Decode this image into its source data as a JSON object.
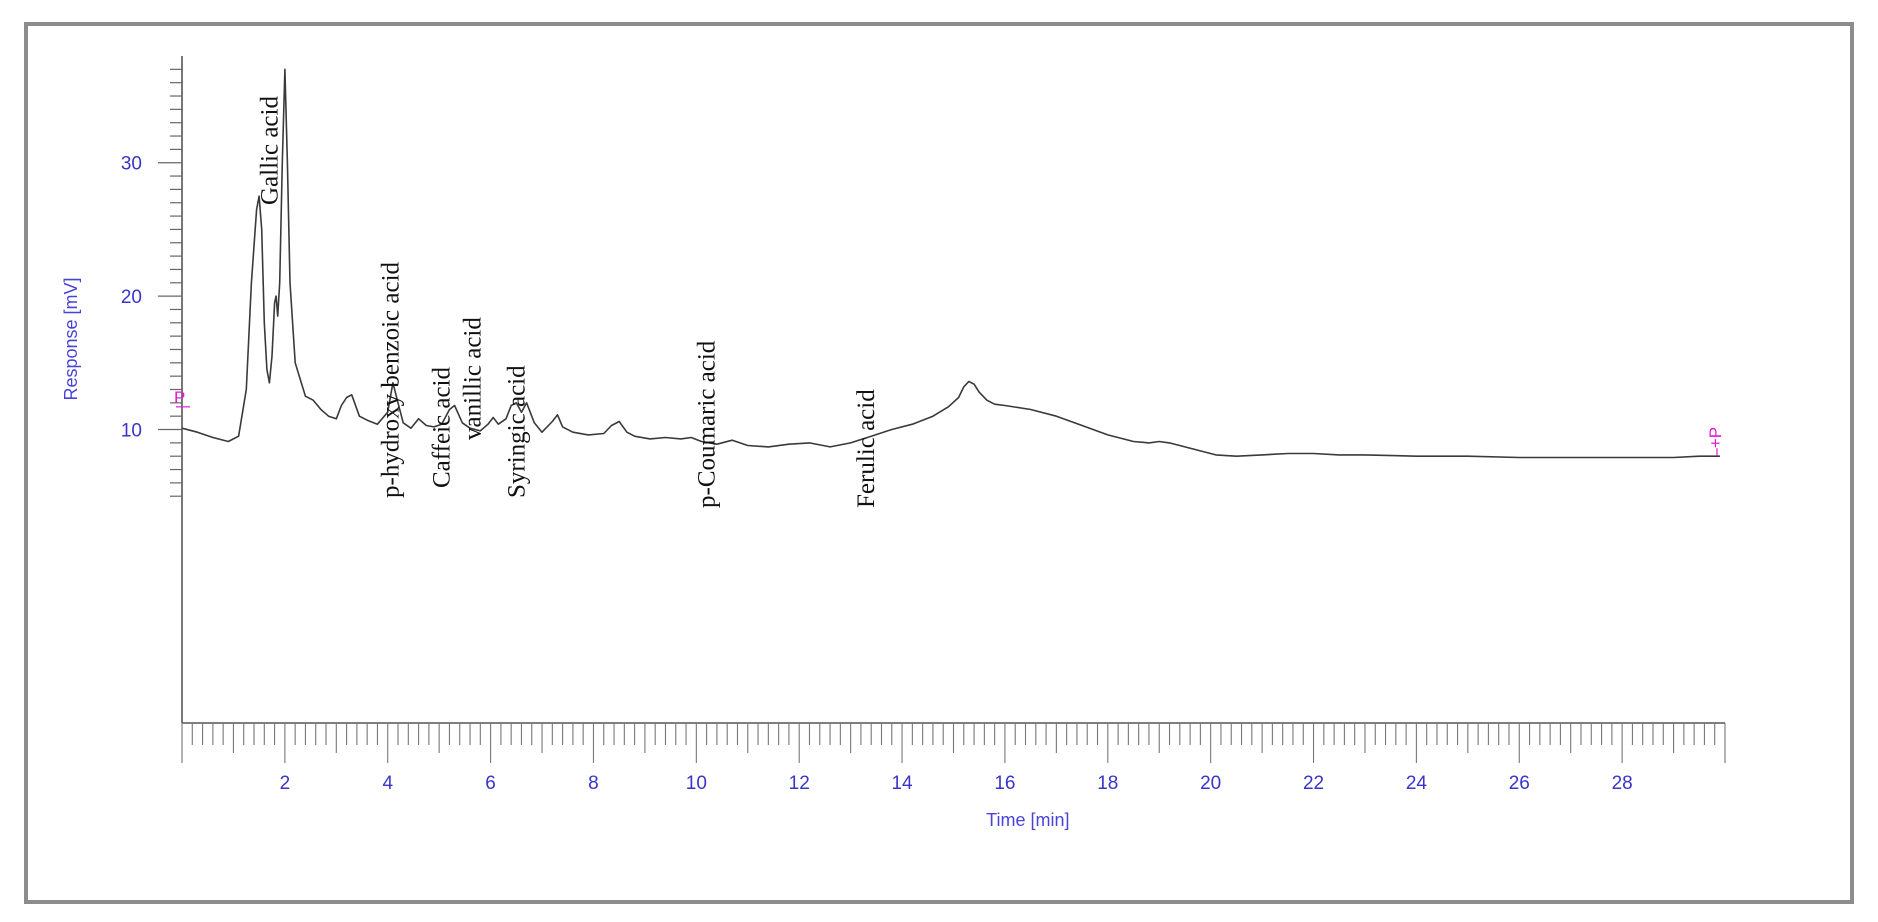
{
  "chart_data": {
    "type": "line",
    "title": "",
    "xlabel": "Time [min]",
    "ylabel": "Response [mV]",
    "xlim": [
      0,
      30
    ],
    "ylim": [
      -12,
      38
    ],
    "x_ticks": [
      2,
      4,
      6,
      8,
      10,
      12,
      14,
      16,
      18,
      20,
      22,
      24,
      26,
      28
    ],
    "y_ticks": [
      10,
      20,
      30
    ],
    "baseline_markers": [
      "P",
      "+P"
    ],
    "series": [
      {
        "x": [
          0.0,
          0.3,
          0.6,
          0.9,
          1.1,
          1.25,
          1.35,
          1.45,
          1.5,
          1.55,
          1.6,
          1.65,
          1.7,
          1.75,
          1.8,
          1.83,
          1.86,
          1.9,
          1.95,
          2.0,
          2.05,
          2.1,
          2.2,
          2.4,
          2.55,
          2.7,
          2.85,
          3.0,
          3.1,
          3.2,
          3.3,
          3.45,
          3.6,
          3.8,
          4.0,
          4.1,
          4.2,
          4.3,
          4.45,
          4.6,
          4.75,
          4.9,
          5.05,
          5.2,
          5.3,
          5.45,
          5.6,
          5.8,
          5.95,
          6.05,
          6.15,
          6.3,
          6.4,
          6.5,
          6.6,
          6.7,
          6.85,
          7.0,
          7.2,
          7.3,
          7.4,
          7.6,
          7.9,
          8.2,
          8.35,
          8.5,
          8.65,
          8.8,
          9.1,
          9.4,
          9.7,
          9.9,
          10.1,
          10.4,
          10.7,
          11.0,
          11.4,
          11.8,
          12.2,
          12.6,
          13.0,
          13.4,
          13.8,
          14.2,
          14.6,
          14.9,
          15.1,
          15.2,
          15.3,
          15.4,
          15.5,
          15.65,
          15.8,
          16.0,
          16.5,
          17.0,
          17.5,
          18.0,
          18.5,
          18.8,
          19.0,
          19.2,
          19.5,
          19.8,
          20.1,
          20.5,
          21.0,
          21.5,
          22.0,
          22.5,
          23.0,
          24.0,
          25.0,
          26.0,
          27.0,
          28.0,
          29.0,
          29.5,
          29.9
        ],
        "y": [
          10.1,
          9.8,
          9.4,
          9.1,
          9.5,
          13.0,
          21.0,
          26.5,
          27.5,
          25.0,
          18.0,
          14.5,
          13.5,
          15.5,
          19.5,
          20.0,
          18.5,
          21.0,
          30.0,
          37.0,
          30.0,
          21.0,
          15.0,
          12.5,
          12.2,
          11.5,
          11.0,
          10.8,
          11.8,
          12.4,
          12.6,
          11.0,
          10.7,
          10.4,
          11.3,
          13.5,
          12.0,
          10.5,
          10.1,
          10.8,
          10.3,
          10.2,
          10.4,
          11.5,
          11.8,
          10.5,
          10.1,
          9.9,
          10.4,
          10.9,
          10.4,
          10.8,
          11.8,
          12.0,
          11.3,
          12.0,
          10.5,
          9.8,
          10.6,
          11.1,
          10.2,
          9.8,
          9.6,
          9.7,
          10.3,
          10.6,
          9.8,
          9.5,
          9.3,
          9.4,
          9.3,
          9.4,
          9.1,
          8.9,
          9.2,
          8.8,
          8.7,
          8.9,
          9.0,
          8.7,
          9.0,
          9.5,
          10.0,
          10.4,
          11.0,
          11.7,
          12.4,
          13.2,
          13.6,
          13.4,
          12.8,
          12.2,
          11.9,
          11.8,
          11.5,
          11.0,
          10.3,
          9.6,
          9.1,
          9.0,
          9.1,
          9.0,
          8.7,
          8.4,
          8.1,
          8.0,
          8.1,
          8.2,
          8.2,
          8.1,
          8.1,
          8.0,
          8.0,
          7.9,
          7.9,
          7.9,
          7.9,
          8.0,
          8.0
        ]
      }
    ],
    "annotations": [
      {
        "text": "Gallic acid",
        "x": 1.7
      },
      {
        "text": "p-hydroxy benzoic acid",
        "x": 4.05
      },
      {
        "text": "Caffeic acid",
        "x": 5.05
      },
      {
        "text": "vanillic acid",
        "x": 5.65
      },
      {
        "text": "Syringic acid",
        "x": 6.5
      },
      {
        "text": "p-Coumaric acid",
        "x": 10.2
      },
      {
        "text": "Ferulic acid",
        "x": 13.3
      }
    ]
  }
}
